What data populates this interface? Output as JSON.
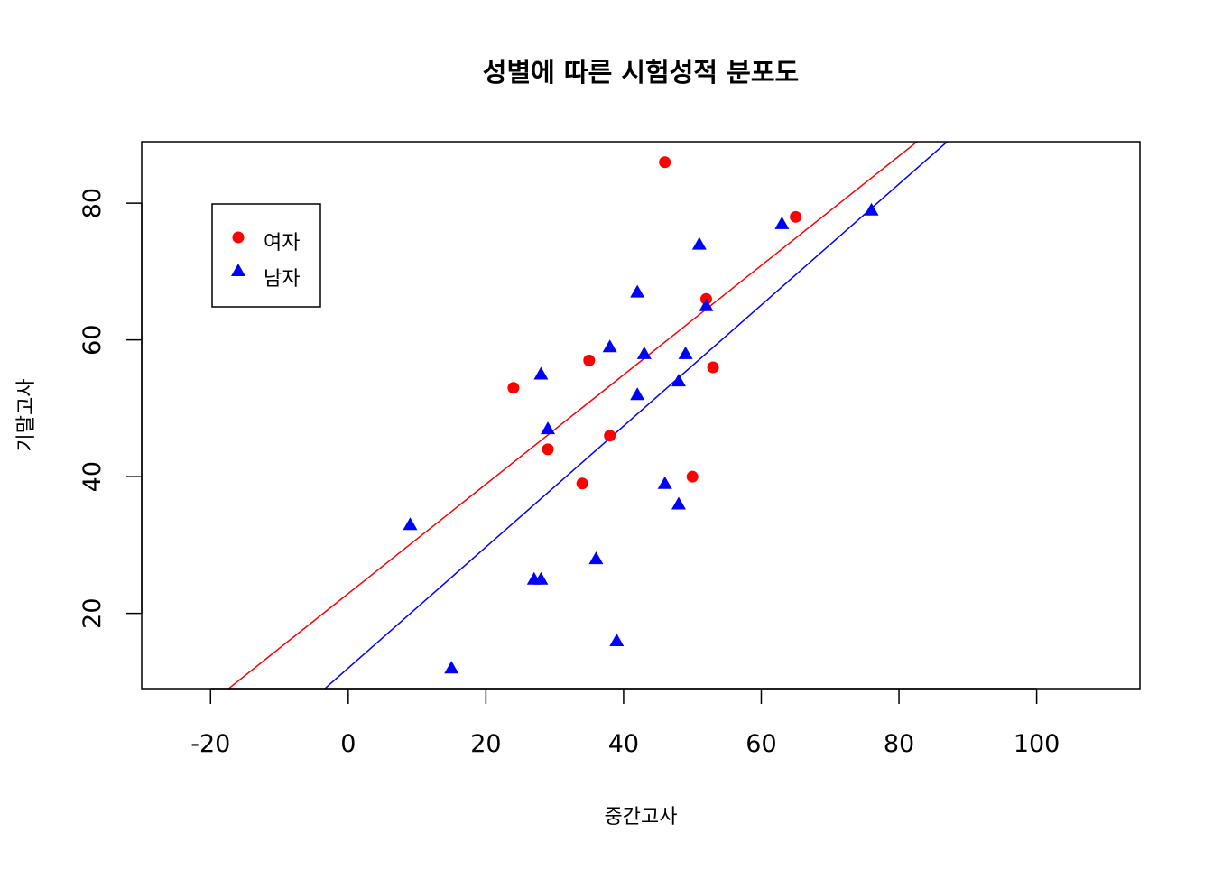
{
  "chart_data": {
    "type": "scatter",
    "title": "성별에 따른 시험성적 분포도",
    "xlabel": "중간고사",
    "ylabel": "기말고사",
    "xlim": [
      -30,
      115
    ],
    "ylim": [
      9,
      89
    ],
    "x_ticks": [
      -20,
      0,
      20,
      40,
      60,
      80,
      100
    ],
    "y_ticks": [
      20,
      40,
      60,
      80
    ],
    "grid": false,
    "legend_position": "top-left",
    "series": [
      {
        "name": "여자",
        "color": "#ff0000",
        "marker": "circle",
        "points": [
          {
            "x": 46,
            "y": 86
          },
          {
            "x": 65,
            "y": 78
          },
          {
            "x": 52,
            "y": 66
          },
          {
            "x": 35,
            "y": 57
          },
          {
            "x": 53,
            "y": 56
          },
          {
            "x": 24,
            "y": 53
          },
          {
            "x": 38,
            "y": 46
          },
          {
            "x": 29,
            "y": 44
          },
          {
            "x": 50,
            "y": 40
          },
          {
            "x": 34,
            "y": 39
          }
        ],
        "fit_line": {
          "intercept": 22.9,
          "slope": 0.8
        }
      },
      {
        "name": "남자",
        "color": "#0000ff",
        "marker": "triangle",
        "points": [
          {
            "x": 76,
            "y": 79
          },
          {
            "x": 63,
            "y": 77
          },
          {
            "x": 51,
            "y": 74
          },
          {
            "x": 42,
            "y": 67
          },
          {
            "x": 52,
            "y": 65
          },
          {
            "x": 38,
            "y": 59
          },
          {
            "x": 43,
            "y": 58
          },
          {
            "x": 49,
            "y": 58
          },
          {
            "x": 28,
            "y": 55
          },
          {
            "x": 48,
            "y": 54
          },
          {
            "x": 42,
            "y": 52
          },
          {
            "x": 29,
            "y": 47
          },
          {
            "x": 46,
            "y": 39
          },
          {
            "x": 48,
            "y": 36
          },
          {
            "x": 9,
            "y": 33
          },
          {
            "x": 36,
            "y": 28
          },
          {
            "x": 27,
            "y": 25
          },
          {
            "x": 28,
            "y": 25
          },
          {
            "x": 39,
            "y": 16
          },
          {
            "x": 15,
            "y": 12
          }
        ],
        "fit_line": {
          "intercept": 12.0,
          "slope": 0.885
        }
      }
    ]
  }
}
